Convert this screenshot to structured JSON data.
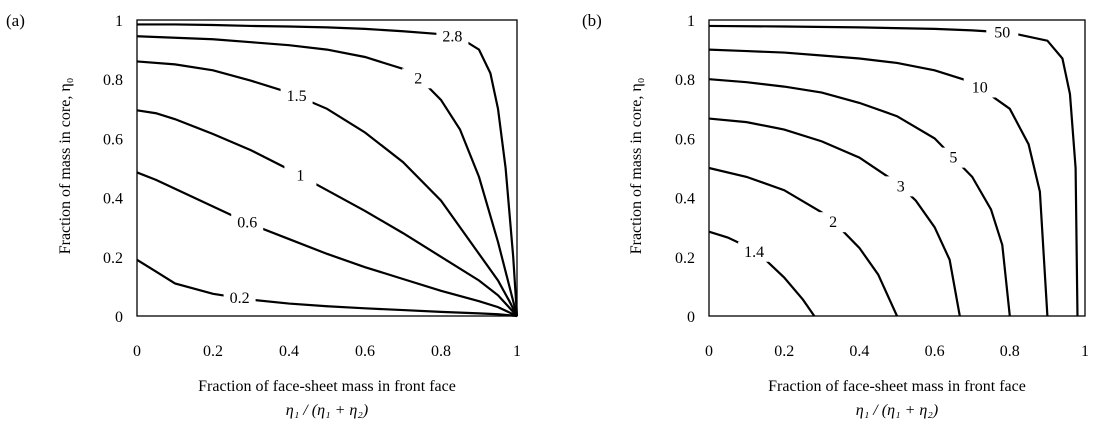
{
  "chart_data": [
    {
      "type": "line",
      "panel_label": "(a)",
      "xlabel_line1": "Fraction of face-sheet mass in front face",
      "xlabel_line2": "η₁ / (η₁ + η₂)",
      "ylabel": "Fraction of mass in core, η₀",
      "xlim": [
        0,
        1
      ],
      "ylim": [
        0,
        1
      ],
      "xticks": [
        "0",
        "0.2",
        "0.4",
        "0.6",
        "0.8",
        "1"
      ],
      "yticks": [
        "0",
        "0.2",
        "0.4",
        "0.6",
        "0.8",
        "1"
      ],
      "series": [
        {
          "name": "0.2",
          "x": [
            0,
            0.05,
            0.1,
            0.2,
            0.3,
            0.4,
            0.5,
            0.6,
            0.7,
            0.8,
            0.9,
            0.95,
            1.0
          ],
          "y": [
            0.19,
            0.15,
            0.11,
            0.075,
            0.055,
            0.042,
            0.033,
            0.026,
            0.02,
            0.014,
            0.009,
            0.006,
            0.0
          ]
        },
        {
          "name": "0.6",
          "x": [
            0,
            0.05,
            0.1,
            0.2,
            0.3,
            0.4,
            0.5,
            0.6,
            0.7,
            0.8,
            0.9,
            0.95,
            1.0
          ],
          "y": [
            0.485,
            0.46,
            0.43,
            0.37,
            0.31,
            0.26,
            0.21,
            0.165,
            0.125,
            0.085,
            0.05,
            0.03,
            0.0
          ]
        },
        {
          "name": "1",
          "x": [
            0,
            0.05,
            0.1,
            0.2,
            0.3,
            0.4,
            0.5,
            0.6,
            0.7,
            0.8,
            0.9,
            0.95,
            1.0
          ],
          "y": [
            0.695,
            0.685,
            0.665,
            0.615,
            0.56,
            0.495,
            0.425,
            0.355,
            0.28,
            0.2,
            0.12,
            0.07,
            0.0
          ]
        },
        {
          "name": "1.5",
          "x": [
            0,
            0.1,
            0.2,
            0.3,
            0.4,
            0.5,
            0.6,
            0.7,
            0.8,
            0.9,
            0.95,
            0.98,
            1.0
          ],
          "y": [
            0.86,
            0.85,
            0.83,
            0.795,
            0.755,
            0.7,
            0.62,
            0.52,
            0.39,
            0.21,
            0.12,
            0.05,
            0.0
          ]
        },
        {
          "name": "2",
          "x": [
            0,
            0.1,
            0.2,
            0.3,
            0.4,
            0.5,
            0.6,
            0.7,
            0.75,
            0.8,
            0.85,
            0.9,
            0.95,
            0.98,
            1.0
          ],
          "y": [
            0.945,
            0.94,
            0.935,
            0.925,
            0.915,
            0.9,
            0.875,
            0.835,
            0.795,
            0.73,
            0.63,
            0.47,
            0.25,
            0.1,
            0.0
          ]
        },
        {
          "name": "2.8",
          "x": [
            0,
            0.1,
            0.2,
            0.3,
            0.4,
            0.5,
            0.6,
            0.7,
            0.8,
            0.85,
            0.9,
            0.93,
            0.95,
            0.97,
            0.99,
            1.0
          ],
          "y": [
            0.985,
            0.985,
            0.983,
            0.98,
            0.978,
            0.975,
            0.97,
            0.962,
            0.952,
            0.94,
            0.9,
            0.82,
            0.7,
            0.5,
            0.2,
            0.0
          ]
        }
      ]
    },
    {
      "type": "line",
      "panel_label": "(b)",
      "xlabel_line1": "Fraction of face-sheet mass in front face",
      "xlabel_line2": "η₁ / (η₁ + η₂)",
      "ylabel": "Fraction of mass in core, η₀",
      "xlim": [
        0,
        1
      ],
      "ylim": [
        0,
        1
      ],
      "xticks": [
        "0",
        "0.2",
        "0.4",
        "0.6",
        "0.8",
        "1"
      ],
      "yticks": [
        "0",
        "0.2",
        "0.4",
        "0.6",
        "0.8",
        "1"
      ],
      "series": [
        {
          "name": "1.4",
          "x": [
            0,
            0.05,
            0.1,
            0.15,
            0.2,
            0.25,
            0.28
          ],
          "y": [
            0.285,
            0.265,
            0.235,
            0.19,
            0.13,
            0.055,
            0.0
          ]
        },
        {
          "name": "2",
          "x": [
            0,
            0.1,
            0.2,
            0.3,
            0.35,
            0.4,
            0.45,
            0.5
          ],
          "y": [
            0.5,
            0.47,
            0.425,
            0.35,
            0.295,
            0.23,
            0.14,
            0.0
          ]
        },
        {
          "name": "3",
          "x": [
            0,
            0.1,
            0.2,
            0.3,
            0.4,
            0.5,
            0.55,
            0.6,
            0.64,
            0.667
          ],
          "y": [
            0.667,
            0.655,
            0.63,
            0.59,
            0.535,
            0.45,
            0.39,
            0.3,
            0.19,
            0.0
          ]
        },
        {
          "name": "5",
          "x": [
            0,
            0.1,
            0.2,
            0.3,
            0.4,
            0.5,
            0.6,
            0.7,
            0.75,
            0.78,
            0.8
          ],
          "y": [
            0.8,
            0.79,
            0.775,
            0.755,
            0.72,
            0.675,
            0.6,
            0.47,
            0.36,
            0.24,
            0.0
          ]
        },
        {
          "name": "10",
          "x": [
            0,
            0.1,
            0.2,
            0.3,
            0.4,
            0.5,
            0.6,
            0.7,
            0.8,
            0.85,
            0.88,
            0.9
          ],
          "y": [
            0.9,
            0.895,
            0.89,
            0.88,
            0.87,
            0.855,
            0.83,
            0.79,
            0.7,
            0.58,
            0.42,
            0.0
          ]
        },
        {
          "name": "50",
          "x": [
            0,
            0.2,
            0.4,
            0.6,
            0.7,
            0.8,
            0.9,
            0.94,
            0.96,
            0.975,
            0.98
          ],
          "y": [
            0.98,
            0.978,
            0.975,
            0.97,
            0.965,
            0.957,
            0.93,
            0.87,
            0.75,
            0.5,
            0.0
          ]
        }
      ]
    }
  ]
}
